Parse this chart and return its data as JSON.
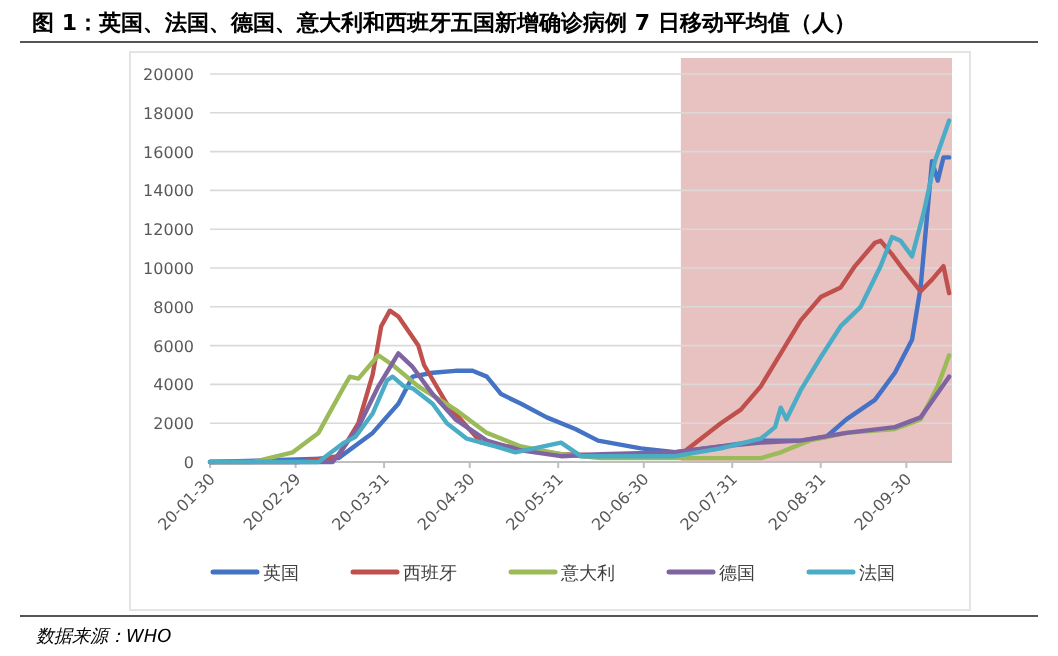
{
  "chart_data": {
    "type": "line",
    "title": "图 1：英国、法国、德国、意大利和西班牙五国新增确诊病例 7 日移动平均值（人）",
    "annotations": [
      "数据来源：WHO"
    ],
    "xlim": [
      "--01-30",
      "--10-16"
    ],
    "xticks": [
      {
        "value": "--01-30",
        "label": "20-01-30"
      },
      {
        "value": "--02-29",
        "label": "20-02-29"
      },
      {
        "value": "--03-31",
        "label": "20-03-31"
      },
      {
        "value": "--04-30",
        "label": "20-04-30"
      },
      {
        "value": "--05-31",
        "label": "20-05-31"
      },
      {
        "value": "--06-30",
        "label": "20-06-30"
      },
      {
        "value": "--07-31",
        "label": "20-07-31"
      },
      {
        "value": "--08-31",
        "label": "20-08-31"
      },
      {
        "value": "--09-30",
        "label": "20-09-30"
      }
    ],
    "ylim": [
      0,
      20000
    ],
    "yticks": [
      0,
      2000,
      4000,
      6000,
      8000,
      10000,
      12000,
      14000,
      16000,
      18000,
      20000
    ],
    "grid": "y",
    "legend": "bottom",
    "bands": [
      {
        "axis": "x",
        "from": "--07-13",
        "to": "--10-16",
        "color": "#e8c1c1"
      }
    ],
    "series": [
      {
        "name": "英国",
        "color": "#4472c4",
        "x": [
          "--01-30",
          "--03-15",
          "--03-27",
          "--04-05",
          "--04-10",
          "--04-17",
          "--04-25",
          "--05-01",
          "--05-06",
          "--05-11",
          "--05-18",
          "--05-27",
          "--06-06",
          "--06-14",
          "--06-29",
          "--07-11",
          "--07-27",
          "--08-10",
          "--08-24",
          "--09-02",
          "--09-09",
          "--09-19",
          "--09-26",
          "--10-02",
          "--10-05",
          "--10-09",
          "--10-11",
          "--10-13",
          "--10-15"
        ],
        "values": [
          0,
          200,
          1500,
          3000,
          4400,
          4600,
          4700,
          4700,
          4400,
          3500,
          3000,
          2300,
          1700,
          1100,
          700,
          500,
          800,
          1100,
          1100,
          1300,
          2200,
          3200,
          4600,
          6300,
          9000,
          15500,
          14500,
          15700,
          15700
        ]
      },
      {
        "name": "西班牙",
        "color": "#c0504d",
        "x": [
          "--01-30",
          "--03-01",
          "--03-15",
          "--03-22",
          "--03-27",
          "--03-30",
          "--04-02",
          "--04-05",
          "--04-12",
          "--04-14",
          "--04-22",
          "--05-04",
          "--06-01",
          "--06-29",
          "--07-13",
          "--07-27",
          "--08-03",
          "--08-10",
          "--08-17",
          "--08-24",
          "--08-31",
          "--09-07",
          "--09-12",
          "--09-19",
          "--09-21",
          "--09-25",
          "--09-28",
          "--10-05",
          "--10-09",
          "--10-13",
          "--10-15"
        ],
        "values": [
          0,
          0,
          300,
          2000,
          4500,
          7000,
          7800,
          7500,
          6000,
          5000,
          3000,
          1000,
          400,
          300,
          400,
          2000,
          2700,
          3900,
          5600,
          7300,
          8500,
          9000,
          10100,
          11300,
          11400,
          10700,
          10100,
          8800,
          9400,
          10100,
          8700
        ]
      },
      {
        "name": "意大利",
        "color": "#9bbb59",
        "x": [
          "--01-30",
          "--02-14",
          "--02-28",
          "--03-08",
          "--03-17",
          "--03-19",
          "--03-22",
          "--03-29",
          "--04-03",
          "--04-12",
          "--04-25",
          "--05-06",
          "--05-18",
          "--06-01",
          "--06-15",
          "--08-10",
          "--08-17",
          "--08-27",
          "--09-09",
          "--09-26",
          "--10-05",
          "--10-11",
          "--10-15"
        ],
        "values": [
          0,
          0,
          500,
          1500,
          3900,
          4400,
          4300,
          5500,
          5000,
          3900,
          2700,
          1500,
          800,
          400,
          200,
          200,
          500,
          1100,
          1500,
          1700,
          2200,
          3900,
          5500
        ]
      },
      {
        "name": "德国",
        "color": "#8064a2",
        "x": [
          "--01-30",
          "--03-13",
          "--03-22",
          "--03-29",
          "--04-05",
          "--04-10",
          "--04-17",
          "--04-25",
          "--05-06",
          "--05-18",
          "--06-01",
          "--06-15",
          "--07-11",
          "--07-27",
          "--08-10",
          "--08-24",
          "--09-09",
          "--09-26",
          "--10-05",
          "--10-15"
        ],
        "values": [
          0,
          0,
          1800,
          3900,
          5600,
          4900,
          3500,
          2200,
          1100,
          600,
          300,
          400,
          500,
          800,
          1000,
          1100,
          1500,
          1800,
          2300,
          4400
        ]
      },
      {
        "name": "法国",
        "color": "#4bacc6",
        "x": [
          "--01-30",
          "--03-08",
          "--03-17",
          "--03-21",
          "--03-27",
          "--04-01",
          "--04-03",
          "--04-07",
          "--04-10",
          "--04-17",
          "--04-22",
          "--04-29",
          "--05-09",
          "--05-16",
          "--06-01",
          "--06-08",
          "--07-11",
          "--07-27",
          "--08-10",
          "--08-15",
          "--08-17",
          "--08-19",
          "--08-24",
          "--08-31",
          "--09-07",
          "--09-14",
          "--09-21",
          "--09-25",
          "--09-28",
          "--10-02",
          "--10-06",
          "--10-10",
          "--10-15"
        ],
        "values": [
          0,
          0,
          1000,
          1300,
          2500,
          4200,
          4400,
          3900,
          3800,
          3000,
          2000,
          1200,
          800,
          500,
          1000,
          300,
          300,
          700,
          1200,
          1800,
          2800,
          2200,
          3700,
          5400,
          7000,
          8000,
          10100,
          11600,
          11400,
          10600,
          12800,
          15500,
          17600
        ]
      }
    ]
  }
}
